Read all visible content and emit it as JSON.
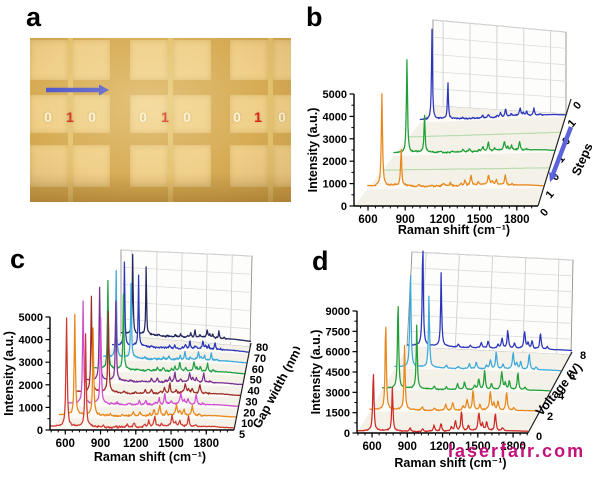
{
  "watermark": {
    "text": "laserfair.com",
    "color": "#c3127a"
  },
  "panels": {
    "a": {
      "label": "a",
      "groups": [
        [
          "0",
          "1",
          "0"
        ],
        [
          "0",
          "1",
          "0"
        ],
        [
          "0",
          "1",
          "0"
        ]
      ],
      "digit_colors": {
        "0": "#fbf5da",
        "1": "#d6281b"
      },
      "arrow_color": "#4d56cb",
      "photo": {
        "pad_color": "#f0d089",
        "band_color": "#d7ac55",
        "inner_gap_color": "#e5c471"
      }
    },
    "b": {
      "label": "b"
    },
    "c": {
      "label": "c"
    },
    "d": {
      "label": "d"
    }
  },
  "raman_peaks": [
    {
      "x": 611,
      "r": 1.0,
      "w": 6.0
    },
    {
      "x": 773,
      "r": 0.8,
      "w": 5.5
    },
    {
      "x": 925,
      "r": 0.1,
      "w": 7
    },
    {
      "x": 1030,
      "r": 0.07,
      "w": 7
    },
    {
      "x": 1127,
      "r": 0.16,
      "w": 7
    },
    {
      "x": 1187,
      "r": 0.22,
      "w": 7
    },
    {
      "x": 1275,
      "r": 0.12,
      "w": 8
    },
    {
      "x": 1310,
      "r": 0.3,
      "w": 8
    },
    {
      "x": 1361,
      "r": 0.55,
      "w": 7
    },
    {
      "x": 1420,
      "r": 0.16,
      "w": 7
    },
    {
      "x": 1509,
      "r": 0.5,
      "w": 8
    },
    {
      "x": 1540,
      "r": 0.18,
      "w": 7
    },
    {
      "x": 1575,
      "r": 0.25,
      "w": 7
    },
    {
      "x": 1649,
      "r": 0.5,
      "w": 7
    },
    {
      "x": 1710,
      "r": 0.08,
      "w": 9
    }
  ],
  "chart_data": [
    {
      "id": "b",
      "type": "line",
      "waterfall": true,
      "xlabel": "Raman shift (cm⁻¹)",
      "ylabel": "Intensity (a.u.)",
      "zlabel": "Steps",
      "xlim": [
        500,
        1900
      ],
      "x_ticks": [
        600,
        900,
        1200,
        1500,
        1800
      ],
      "ylim": [
        0,
        5000
      ],
      "y_ticks": [
        0,
        1000,
        2000,
        3000,
        4000,
        5000
      ],
      "z_ticks": [
        "0",
        "1",
        "0",
        "1",
        "0",
        "1",
        "0"
      ],
      "peak773_factor": 0.4,
      "arrow_color": "#5b64da",
      "series": [
        {
          "z": 1,
          "step": "1",
          "kind": "spectrum",
          "color": "#e8871a",
          "spike": 4300,
          "body": 900,
          "noise": 50
        },
        {
          "z": 2,
          "step": "0",
          "kind": "flat",
          "color": "#b5dcaa",
          "level": 120
        },
        {
          "z": 3,
          "step": "1",
          "kind": "spectrum",
          "color": "#1f9f35",
          "spike": 4650,
          "body": 850,
          "noise": 45
        },
        {
          "z": 4,
          "step": "0",
          "kind": "flat",
          "color": "#b5dcaa",
          "level": 120
        },
        {
          "z": 5,
          "step": "1",
          "kind": "spectrum",
          "color": "#2a35bb",
          "spike": 4900,
          "body": 800,
          "noise": 42
        }
      ]
    },
    {
      "id": "c",
      "type": "line",
      "waterfall": true,
      "xlabel": "Raman shift (cm⁻¹)",
      "ylabel": "Intensity (a.u.)",
      "zlabel": "Gap width (nm)",
      "xlim": [
        500,
        1900
      ],
      "x_ticks": [
        600,
        900,
        1200,
        1500,
        1800
      ],
      "ylim": [
        0,
        5000
      ],
      "y_ticks": [
        0,
        1000,
        2000,
        3000,
        4000,
        5000
      ],
      "z_ticks": [
        "5",
        "10",
        "20",
        "30",
        "40",
        "50",
        "60",
        "70",
        "80"
      ],
      "peak773_factor": 0.85,
      "series": [
        {
          "z": 0,
          "step": "5",
          "kind": "spectrum",
          "color": "#ce3a31",
          "spike": 4800,
          "body": 900,
          "noise": 52
        },
        {
          "z": 1,
          "step": "10",
          "kind": "spectrum",
          "color": "#e8871a",
          "spike": 4600,
          "body": 920,
          "noise": 52
        },
        {
          "z": 2,
          "step": "20",
          "kind": "spectrum",
          "color": "#cf4ed0",
          "spike": 4700,
          "body": 950,
          "noise": 52
        },
        {
          "z": 3,
          "step": "30",
          "kind": "spectrum",
          "color": "#9e2d26",
          "spike": 4500,
          "body": 900,
          "noise": 52
        },
        {
          "z": 4,
          "step": "40",
          "kind": "spectrum",
          "color": "#7b2f90",
          "spike": 4550,
          "body": 870,
          "noise": 52
        },
        {
          "z": 5,
          "step": "50",
          "kind": "spectrum",
          "color": "#1fa043",
          "spike": 4400,
          "body": 830,
          "noise": 52
        },
        {
          "z": 6,
          "step": "60",
          "kind": "spectrum",
          "color": "#3fa9d9",
          "spike": 4450,
          "body": 800,
          "noise": 52
        },
        {
          "z": 7,
          "step": "70",
          "kind": "spectrum",
          "color": "#2b37b8",
          "spike": 4350,
          "body": 780,
          "noise": 52
        },
        {
          "z": 8,
          "step": "80",
          "kind": "spectrum",
          "color": "#24265e",
          "spike": 4300,
          "body": 760,
          "noise": 52
        }
      ]
    },
    {
      "id": "d",
      "type": "line",
      "waterfall": true,
      "xlabel": "Raman shift (cm⁻¹)",
      "ylabel": "Intensity (a.u.)",
      "zlabel": "Voltage (V)",
      "xlim": [
        500,
        1900
      ],
      "x_ticks": [
        600,
        900,
        1200,
        1500,
        1800
      ],
      "ylim": [
        0,
        9000
      ],
      "y_ticks": [
        0,
        1500,
        3000,
        4500,
        6000,
        7500,
        9000
      ],
      "z_ticks": [
        "0",
        "2",
        "4",
        "6",
        "8"
      ],
      "peak773_factor": 0.72,
      "series": [
        {
          "z": 0,
          "step": "0",
          "kind": "spectrum",
          "color": "#cc2a26",
          "spike": 4500,
          "body": 2600,
          "noise": 55
        },
        {
          "z": 1,
          "step": "2",
          "kind": "spectrum",
          "color": "#e8871a",
          "spike": 6800,
          "body": 2800,
          "noise": 50
        },
        {
          "z": 2,
          "step": "4",
          "kind": "spectrum",
          "color": "#1f9f35",
          "spike": 7000,
          "body": 2800,
          "noise": 48
        },
        {
          "z": 3,
          "step": "6",
          "kind": "spectrum",
          "color": "#3fa9d9",
          "spike": 8200,
          "body": 2600,
          "noise": 45
        },
        {
          "z": 4,
          "step": "8",
          "kind": "spectrum",
          "color": "#2a35bb",
          "spike": 8800,
          "body": 2800,
          "noise": 45
        }
      ]
    }
  ]
}
